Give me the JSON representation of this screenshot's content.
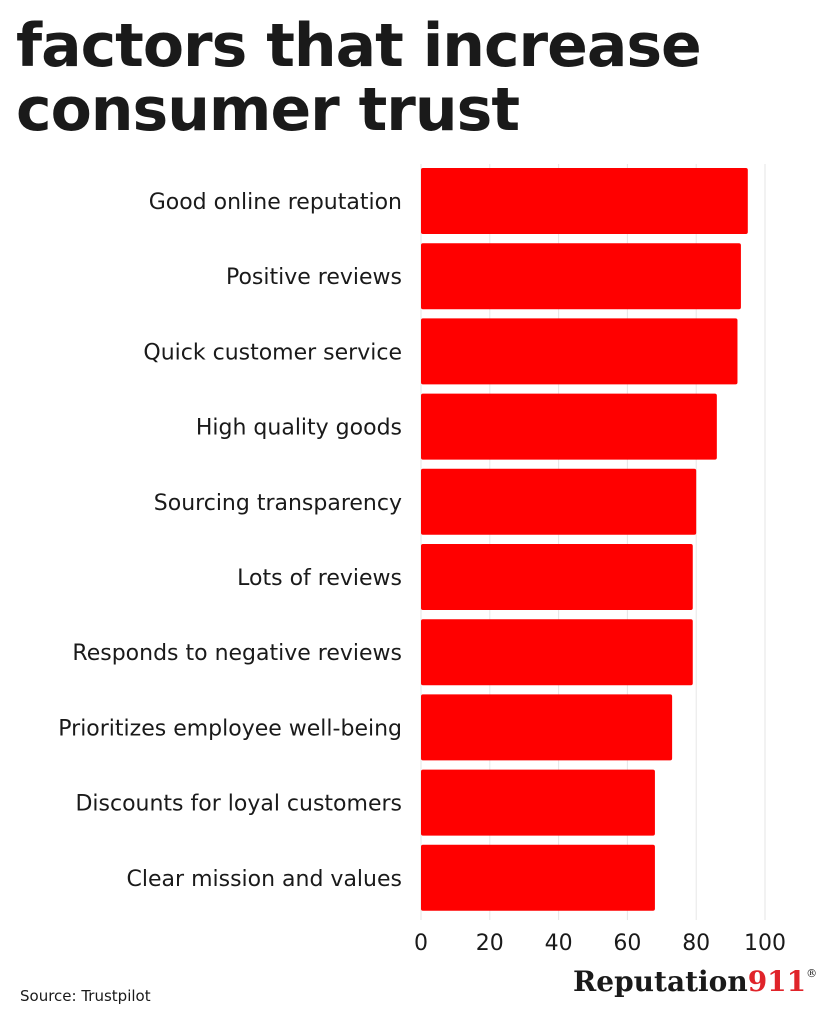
{
  "title": "factors that increase consumer trust",
  "source": "Source: Trustpilot",
  "brand": {
    "name": "Reputation",
    "number": "911",
    "mark": "®"
  },
  "colors": {
    "bar": "#ff0000",
    "text": "#1a1a1a",
    "brand_number": "#e0242a",
    "grid": "#e6e6e6"
  },
  "chart_data": {
    "type": "bar",
    "orientation": "horizontal",
    "title": "factors that increase consumer trust",
    "xlabel": "",
    "ylabel": "",
    "categories": [
      "Good online reputation",
      "Positive reviews",
      "Quick customer service",
      "High quality goods",
      "Sourcing transparency",
      "Lots of reviews",
      "Responds to negative reviews",
      "Prioritizes employee well-being",
      "Discounts for loyal customers",
      "Clear mission and values"
    ],
    "values": [
      95,
      93,
      92,
      86,
      80,
      79,
      79,
      73,
      68,
      68
    ],
    "xlim": [
      0,
      100
    ],
    "xticks": [
      0,
      20,
      40,
      60,
      80,
      100
    ],
    "grid": true,
    "legend": "none"
  }
}
